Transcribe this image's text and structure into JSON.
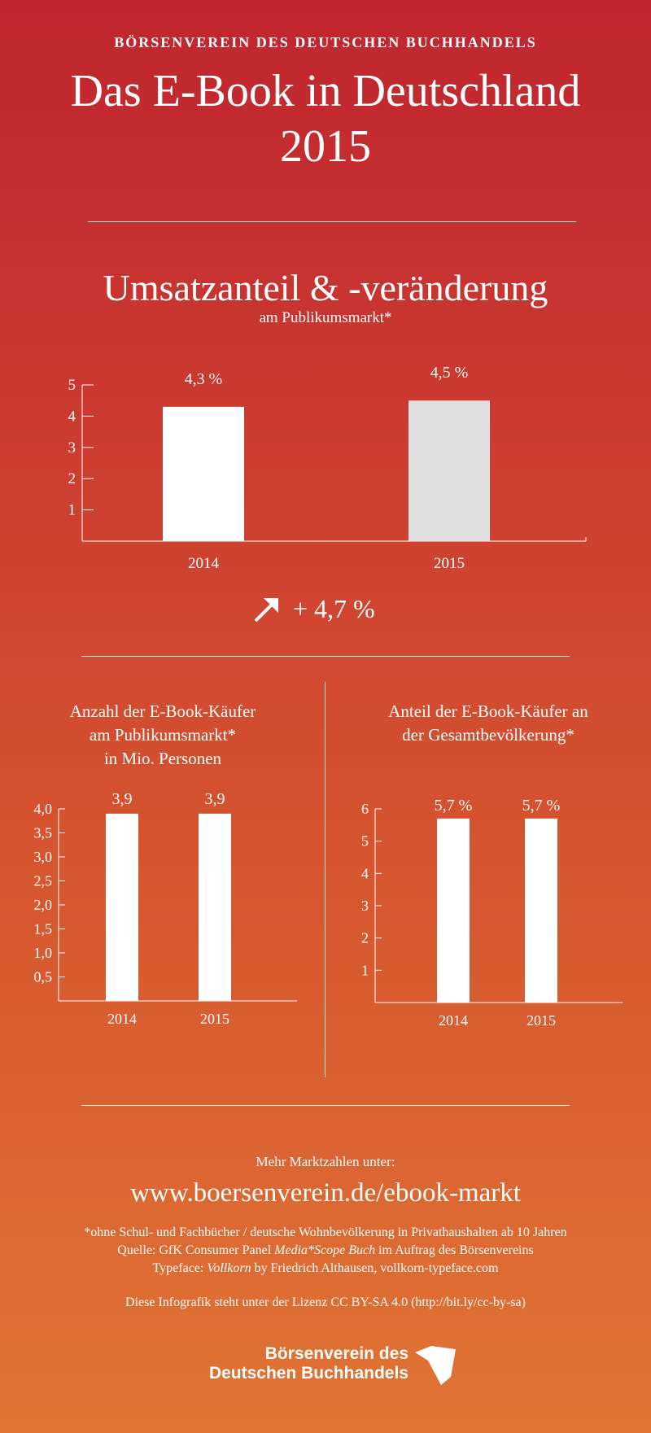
{
  "header": {
    "org": "BÖRSENVEREIN DES DEUTSCHEN BUCHHANDELS",
    "title_line1": "Das E-Book in Deutschland",
    "title_line2": "2015"
  },
  "section1": {
    "title": "Umsatzanteil & -veränderung",
    "subtitle": "am Publikumsmarkt*",
    "change_text": "+ 4,7 %",
    "change_icon": "arrow-up-right-icon"
  },
  "chart_data": [
    {
      "type": "bar",
      "title": "Umsatzanteil & -veränderung",
      "subtitle": "am Publikumsmarkt*",
      "categories": [
        "2014",
        "2015"
      ],
      "values": [
        4.3,
        4.5
      ],
      "value_labels": [
        "4,3 %",
        "4,5 %"
      ],
      "bar_colors": [
        "#ffffff",
        "#e0e0e0"
      ],
      "ylim": [
        0,
        5
      ],
      "yticks": [
        "1",
        "2",
        "3",
        "4",
        "5"
      ],
      "ytick_values": [
        1,
        2,
        3,
        4,
        5
      ],
      "grid": false
    },
    {
      "type": "bar",
      "title": "Anzahl der E-Book-Käufer am Publikumsmarkt* in Mio. Personen",
      "categories": [
        "2014",
        "2015"
      ],
      "values": [
        3.9,
        3.9
      ],
      "value_labels": [
        "3,9",
        "3,9"
      ],
      "bar_colors": [
        "#ffffff",
        "#ffffff"
      ],
      "ylim": [
        0,
        4.0
      ],
      "yticks": [
        "0,5",
        "1,0",
        "1,5",
        "2,0",
        "2,5",
        "3,0",
        "3,5",
        "4,0"
      ],
      "ytick_values": [
        0.5,
        1.0,
        1.5,
        2.0,
        2.5,
        3.0,
        3.5,
        4.0
      ],
      "grid": false
    },
    {
      "type": "bar",
      "title": "Anteil der E-Book-Käufer an der Gesamtbevölkerung*",
      "categories": [
        "2014",
        "2015"
      ],
      "values": [
        5.7,
        5.7
      ],
      "value_labels": [
        "5,7 %",
        "5,7 %"
      ],
      "bar_colors": [
        "#ffffff",
        "#ffffff"
      ],
      "ylim": [
        0,
        6
      ],
      "yticks": [
        "1",
        "2",
        "3",
        "4",
        "5",
        "6"
      ],
      "ytick_values": [
        1,
        2,
        3,
        4,
        5,
        6
      ],
      "grid": false
    }
  ],
  "left_chart": {
    "title_line1": "Anzahl der E-Book-Käufer",
    "title_line2": "am Publikumsmarkt*",
    "title_line3": "in Mio. Personen"
  },
  "right_chart": {
    "title_line1": "Anteil der E-Book-Käufer an",
    "title_line2": "der Gesamtbevölkerung*"
  },
  "footer": {
    "more_label": "Mehr Marktzahlen unter:",
    "url": "www.boersenverein.de/ebook-markt",
    "footnote": "*ohne Schul- und Fachbücher / deutsche Wohnbevölkerung in Privathaushalten ab 10 Jahren",
    "source_prefix": "Quelle: GfK Consumer Panel ",
    "source_italic": "Media*Scope Buch",
    "source_suffix": " im Auftrag des Börsenvereins",
    "typeface_prefix": "Typeface: ",
    "typeface_italic": "Vollkorn",
    "typeface_suffix": " by Friedrich Althausen, vollkorn-typeface.com",
    "license": "Diese Infografik steht unter der Lizenz CC BY-SA 4.0 (http://bit.ly/cc-by-sa)",
    "logo_line1": "Börsenverein des",
    "logo_line2": "Deutschen Buchhandels"
  },
  "colors": {
    "bg_top": "#c0252f",
    "bg_bottom": "#e07434",
    "bar": "#ffffff",
    "bar_alt": "#e0e0e0"
  }
}
